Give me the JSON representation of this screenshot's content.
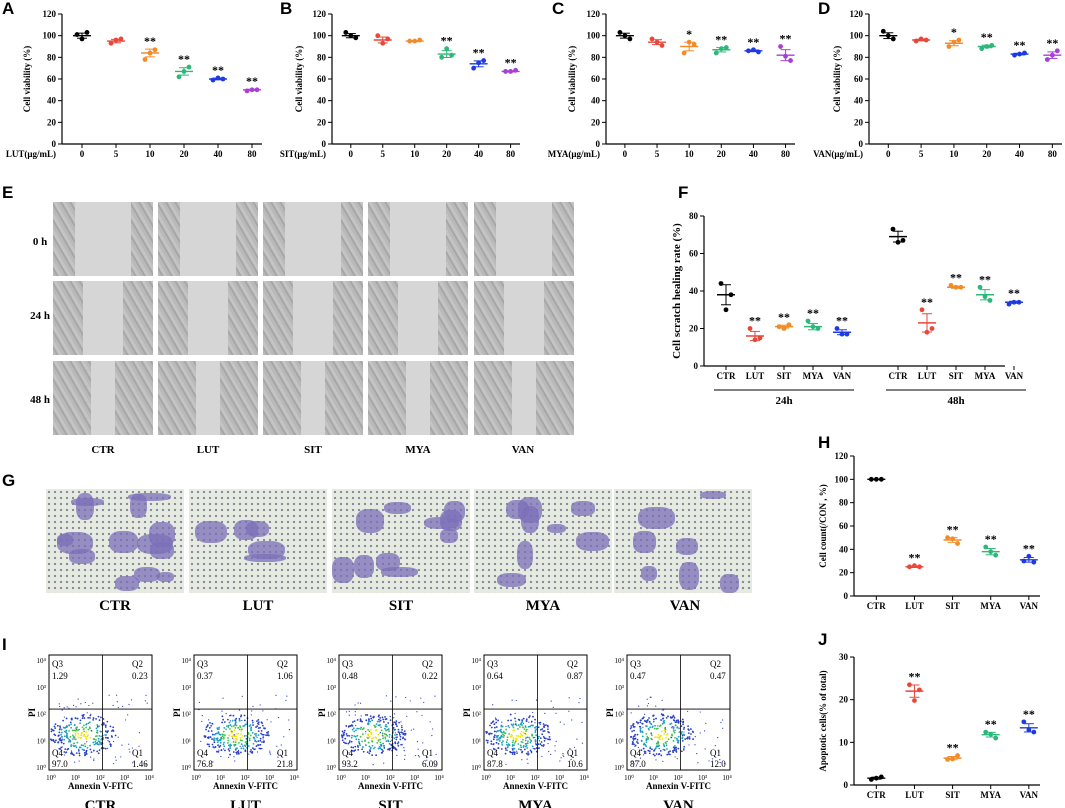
{
  "colors": {
    "g0": "#000000",
    "g5": "#e8473a",
    "g10": "#f28c28",
    "g20": "#2db87a",
    "g40": "#1f3be0",
    "g80": "#a83fd6",
    "ctr": "#000000",
    "lut": "#e8473a",
    "sit": "#f28c28",
    "mya": "#2db87a",
    "van": "#1f3be0"
  },
  "panels": {
    "a": "A",
    "b": "B",
    "c": "C",
    "d": "D",
    "e": "E",
    "f": "F",
    "g": "G",
    "h": "H",
    "i": "I",
    "j": "J"
  },
  "panel_e": {
    "rows": [
      "0 h",
      "24 h",
      "48 h"
    ],
    "cols": [
      "CTR",
      "LUT",
      "SIT",
      "MYA",
      "VAN"
    ]
  },
  "panel_g": {
    "cols": [
      "CTR",
      "LUT",
      "SIT",
      "MYA",
      "VAN"
    ]
  },
  "panel_i": {
    "cols": [
      "CTR",
      "LUT",
      "SIT",
      "MYA",
      "VAN"
    ],
    "xlabel": "Annexin V-FITC",
    "ylabel": "PI",
    "quad_labels": [
      "Q3",
      "Q2",
      "Q4",
      "Q1"
    ],
    "ticks": [
      "10⁰",
      "10¹",
      "10²",
      "10³",
      "10⁴"
    ],
    "plots": [
      {
        "q3": "1.29",
        "q2": "0.23",
        "q4": "97.0",
        "q1": "1.46"
      },
      {
        "q3": "0.37",
        "q2": "1.06",
        "q4": "76.8",
        "q1": "21.8"
      },
      {
        "q3": "0.48",
        "q2": "0.22",
        "q4": "93.2",
        "q1": "6.09"
      },
      {
        "q3": "0.64",
        "q2": "0.87",
        "q4": "87.8",
        "q1": "10.6"
      },
      {
        "q3": "0.47",
        "q2": "0.47",
        "q4": "87.0",
        "q1": "12.0"
      }
    ]
  },
  "chart_data": [
    {
      "id": "A",
      "type": "scatter",
      "xlabel": "LUT(μg/mL)",
      "ylabel": "Cell viability (%)",
      "categories": [
        "0",
        "5",
        "10",
        "20",
        "40",
        "80"
      ],
      "ylim": [
        0,
        120
      ],
      "yticks": [
        0,
        20,
        40,
        60,
        80,
        100,
        120
      ],
      "colors": [
        "g0",
        "g5",
        "g10",
        "g20",
        "g40",
        "g80"
      ],
      "means": [
        100,
        95,
        84,
        67,
        60,
        50
      ],
      "points": [
        [
          101,
          103,
          97
        ],
        [
          93,
          97,
          96
        ],
        [
          78,
          87,
          84
        ],
        [
          62,
          71,
          67
        ],
        [
          59,
          60,
          61
        ],
        [
          49,
          50,
          50
        ]
      ],
      "sig": [
        "",
        "",
        "**",
        "**",
        "**",
        "**"
      ]
    },
    {
      "id": "B",
      "type": "scatter",
      "xlabel": "SIT(μg/mL)",
      "ylabel": "Cell viability (%)",
      "categories": [
        "0",
        "5",
        "10",
        "20",
        "40",
        "80"
      ],
      "ylim": [
        0,
        120
      ],
      "yticks": [
        0,
        20,
        40,
        60,
        80,
        100,
        120
      ],
      "colors": [
        "g0",
        "g5",
        "g10",
        "g20",
        "g40",
        "g80"
      ],
      "means": [
        100,
        96,
        95,
        83,
        74,
        67
      ],
      "points": [
        [
          103,
          98,
          100
        ],
        [
          100,
          97,
          93
        ],
        [
          95,
          96,
          95
        ],
        [
          80,
          82,
          88
        ],
        [
          70,
          77,
          75
        ],
        [
          67,
          68,
          67
        ]
      ],
      "sig": [
        "",
        "",
        "",
        "**",
        "**",
        "**"
      ]
    },
    {
      "id": "C",
      "type": "scatter",
      "xlabel": "MYA(μg/mL)",
      "ylabel": "Cell viability (%)",
      "categories": [
        "0",
        "5",
        "10",
        "20",
        "40",
        "80"
      ],
      "ylim": [
        0,
        120
      ],
      "yticks": [
        0,
        20,
        40,
        60,
        80,
        100,
        120
      ],
      "colors": [
        "g0",
        "g5",
        "g10",
        "g20",
        "g40",
        "g80"
      ],
      "means": [
        100,
        94,
        90,
        87,
        86,
        82
      ],
      "points": [
        [
          103,
          97,
          100
        ],
        [
          97,
          91,
          94
        ],
        [
          84,
          92,
          94
        ],
        [
          84,
          89,
          88
        ],
        [
          86,
          85,
          87
        ],
        [
          90,
          77,
          81
        ]
      ],
      "sig": [
        "",
        "",
        "*",
        "**",
        "**",
        "**"
      ]
    },
    {
      "id": "D",
      "type": "scatter",
      "xlabel": "VAN(μg/mL)",
      "ylabel": "Cell viability (%)",
      "categories": [
        "0",
        "5",
        "10",
        "20",
        "40",
        "80"
      ],
      "ylim": [
        0,
        120
      ],
      "yticks": [
        0,
        20,
        40,
        60,
        80,
        100,
        120
      ],
      "colors": [
        "g0",
        "g5",
        "g10",
        "g20",
        "g40",
        "g80"
      ],
      "means": [
        100,
        96,
        93,
        90,
        83,
        82
      ],
      "points": [
        [
          104,
          97,
          100
        ],
        [
          95,
          96,
          97
        ],
        [
          90,
          96,
          94
        ],
        [
          88,
          91,
          90
        ],
        [
          82,
          84,
          83
        ],
        [
          78,
          86,
          82
        ]
      ],
      "sig": [
        "",
        "",
        "*",
        "**",
        "**",
        "**"
      ]
    },
    {
      "id": "F",
      "type": "scatter",
      "ylabel": "Cell scratch healing rate (%)",
      "categories": [
        "CTR",
        "LUT",
        "SIT",
        "MYA",
        "VAN",
        "CTR",
        "LUT",
        "SIT",
        "MYA",
        "VAN"
      ],
      "groups": [
        "24h",
        "48h"
      ],
      "ylim": [
        0,
        80
      ],
      "yticks": [
        0,
        20,
        40,
        60,
        80
      ],
      "colors": [
        "ctr",
        "lut",
        "sit",
        "mya",
        "van",
        "ctr",
        "lut",
        "sit",
        "mya",
        "van"
      ],
      "means": [
        38,
        16,
        21,
        21,
        18,
        69,
        23,
        42,
        38,
        34
      ],
      "points": [
        [
          44,
          38,
          30
        ],
        [
          20,
          15,
          14
        ],
        [
          21,
          22,
          20
        ],
        [
          24,
          20,
          21
        ],
        [
          20,
          17,
          17
        ],
        [
          73,
          67,
          66
        ],
        [
          30,
          20,
          18
        ],
        [
          43,
          42,
          42
        ],
        [
          42,
          35,
          37
        ],
        [
          33,
          34,
          34
        ]
      ],
      "sig": [
        "",
        "**",
        "**",
        "**",
        "**",
        "",
        "**",
        "**",
        "**",
        "**"
      ]
    },
    {
      "id": "H",
      "type": "scatter",
      "ylabel": "Cell count(/CON , %)",
      "categories": [
        "CTR",
        "LUT",
        "SIT",
        "MYA",
        "VAN"
      ],
      "ylim": [
        0,
        120
      ],
      "yticks": [
        0,
        20,
        40,
        60,
        80,
        100,
        120
      ],
      "colors": [
        "ctr",
        "lut",
        "sit",
        "mya",
        "van"
      ],
      "means": [
        100,
        25,
        48,
        38,
        31
      ],
      "points": [
        [
          100,
          100,
          100
        ],
        [
          25,
          25,
          26
        ],
        [
          50,
          45,
          49
        ],
        [
          42,
          35,
          38
        ],
        [
          30,
          29,
          34
        ]
      ],
      "sig": [
        "",
        "**",
        "**",
        "**",
        "**"
      ]
    },
    {
      "id": "J",
      "type": "scatter",
      "ylabel": "Apoptotic cells(% of total)",
      "categories": [
        "CTR",
        "LUT",
        "SIT",
        "MYA",
        "VAN"
      ],
      "ylim": [
        0,
        30
      ],
      "yticks": [
        0,
        10,
        20,
        30
      ],
      "colors": [
        "ctr",
        "lut",
        "sit",
        "mya",
        "van"
      ],
      "means": [
        1.6,
        22,
        6.3,
        11.8,
        13.4
      ],
      "points": [
        [
          1.3,
          1.9,
          1.6
        ],
        [
          23.5,
          22.3,
          19.8
        ],
        [
          6.0,
          6.9,
          6.1
        ],
        [
          12.4,
          11.0,
          11.9
        ],
        [
          14.8,
          12.4,
          12.9
        ]
      ],
      "sig": [
        "",
        "**",
        "**",
        "**",
        "**"
      ]
    }
  ]
}
